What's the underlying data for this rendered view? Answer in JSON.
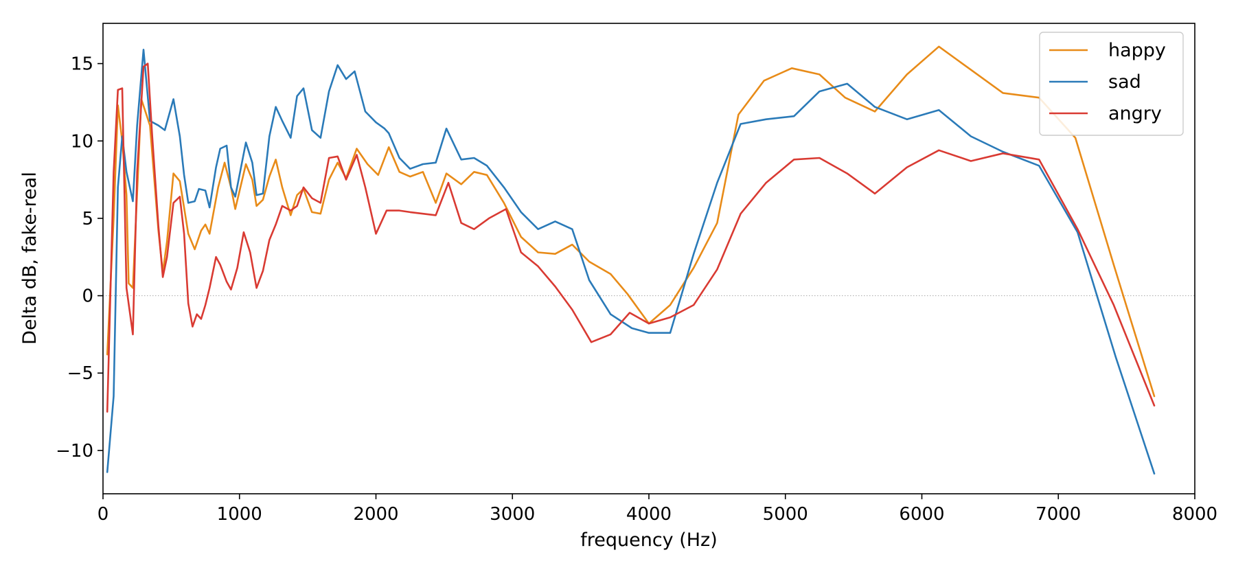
{
  "chart_data": {
    "type": "line",
    "title": "",
    "xlabel": "frequency (Hz)",
    "ylabel": "Delta dB, fake-real",
    "xlim": [
      0,
      8000
    ],
    "ylim": [
      -12.8,
      17.6
    ],
    "xticks": [
      0,
      1000,
      2000,
      3000,
      4000,
      5000,
      6000,
      7000,
      8000
    ],
    "yticks": [
      -10,
      -5,
      0,
      5,
      10,
      15
    ],
    "xtick_labels": [
      "0",
      "1000",
      "2000",
      "3000",
      "4000",
      "5000",
      "6000",
      "7000",
      "8000"
    ],
    "ytick_labels": [
      "−10",
      "−5",
      "0",
      "5",
      "10",
      "15"
    ],
    "zero_line": {
      "y": 0,
      "color": "#b0b0b0",
      "style": "dotted"
    },
    "grid": false,
    "legend_position": "top-right",
    "series": [
      {
        "name": "happy",
        "color": "#e88b18",
        "points": [
          [
            31,
            -3.8
          ],
          [
            78,
            5.0
          ],
          [
            109,
            12.3
          ],
          [
            141,
            10.0
          ],
          [
            172,
            6.5
          ],
          [
            188,
            0.8
          ],
          [
            219,
            0.5
          ],
          [
            281,
            12.7
          ],
          [
            344,
            11.0
          ],
          [
            406,
            4.2
          ],
          [
            438,
            1.5
          ],
          [
            469,
            3.5
          ],
          [
            516,
            7.9
          ],
          [
            563,
            7.4
          ],
          [
            625,
            4.0
          ],
          [
            672,
            3.0
          ],
          [
            719,
            4.2
          ],
          [
            750,
            4.6
          ],
          [
            781,
            4.0
          ],
          [
            844,
            7.0
          ],
          [
            891,
            8.6
          ],
          [
            938,
            7.0
          ],
          [
            969,
            5.6
          ],
          [
            1047,
            8.5
          ],
          [
            1094,
            7.5
          ],
          [
            1125,
            5.8
          ],
          [
            1172,
            6.2
          ],
          [
            1219,
            7.7
          ],
          [
            1266,
            8.8
          ],
          [
            1313,
            7.0
          ],
          [
            1375,
            5.2
          ],
          [
            1422,
            6.5
          ],
          [
            1469,
            6.9
          ],
          [
            1531,
            5.4
          ],
          [
            1594,
            5.3
          ],
          [
            1656,
            7.5
          ],
          [
            1719,
            8.6
          ],
          [
            1781,
            7.6
          ],
          [
            1859,
            9.5
          ],
          [
            1938,
            8.5
          ],
          [
            2016,
            7.8
          ],
          [
            2094,
            9.6
          ],
          [
            2172,
            8.0
          ],
          [
            2250,
            7.7
          ],
          [
            2344,
            8.0
          ],
          [
            2438,
            6.0
          ],
          [
            2516,
            7.9
          ],
          [
            2625,
            7.2
          ],
          [
            2719,
            8.0
          ],
          [
            2813,
            7.8
          ],
          [
            2938,
            6.0
          ],
          [
            3063,
            3.8
          ],
          [
            3188,
            2.8
          ],
          [
            3313,
            2.7
          ],
          [
            3438,
            3.3
          ],
          [
            3563,
            2.2
          ],
          [
            3719,
            1.4
          ],
          [
            3844,
            0.1
          ],
          [
            4000,
            -1.8
          ],
          [
            4156,
            -0.6
          ],
          [
            4328,
            1.8
          ],
          [
            4500,
            4.7
          ],
          [
            4656,
            11.7
          ],
          [
            4844,
            13.9
          ],
          [
            5047,
            14.7
          ],
          [
            5250,
            14.3
          ],
          [
            5438,
            12.8
          ],
          [
            5656,
            11.9
          ],
          [
            5891,
            14.3
          ],
          [
            6125,
            16.1
          ],
          [
            6359,
            14.6
          ],
          [
            6594,
            13.1
          ],
          [
            6859,
            12.8
          ],
          [
            7125,
            10.2
          ],
          [
            7406,
            2.0
          ],
          [
            7703,
            -6.5
          ]
        ]
      },
      {
        "name": "sad",
        "color": "#2a7ab8",
        "points": [
          [
            31,
            -11.4
          ],
          [
            78,
            -6.5
          ],
          [
            109,
            7.0
          ],
          [
            141,
            10.3
          ],
          [
            172,
            8.0
          ],
          [
            219,
            6.1
          ],
          [
            250,
            11.0
          ],
          [
            297,
            15.9
          ],
          [
            344,
            11.3
          ],
          [
            406,
            11.0
          ],
          [
            453,
            10.7
          ],
          [
            516,
            12.7
          ],
          [
            563,
            10.3
          ],
          [
            594,
            7.8
          ],
          [
            625,
            6.0
          ],
          [
            672,
            6.1
          ],
          [
            703,
            6.9
          ],
          [
            750,
            6.8
          ],
          [
            781,
            5.7
          ],
          [
            828,
            8.3
          ],
          [
            859,
            9.5
          ],
          [
            906,
            9.7
          ],
          [
            938,
            7.0
          ],
          [
            969,
            6.4
          ],
          [
            1047,
            9.9
          ],
          [
            1094,
            8.6
          ],
          [
            1125,
            6.5
          ],
          [
            1172,
            6.6
          ],
          [
            1219,
            10.3
          ],
          [
            1266,
            12.2
          ],
          [
            1313,
            11.3
          ],
          [
            1375,
            10.2
          ],
          [
            1422,
            12.9
          ],
          [
            1469,
            13.4
          ],
          [
            1531,
            10.7
          ],
          [
            1594,
            10.2
          ],
          [
            1656,
            13.2
          ],
          [
            1719,
            14.9
          ],
          [
            1781,
            14.0
          ],
          [
            1844,
            14.5
          ],
          [
            1922,
            11.9
          ],
          [
            2000,
            11.2
          ],
          [
            2063,
            10.8
          ],
          [
            2094,
            10.5
          ],
          [
            2172,
            8.9
          ],
          [
            2250,
            8.2
          ],
          [
            2344,
            8.5
          ],
          [
            2438,
            8.6
          ],
          [
            2516,
            10.8
          ],
          [
            2625,
            8.8
          ],
          [
            2719,
            8.9
          ],
          [
            2813,
            8.4
          ],
          [
            2938,
            7.0
          ],
          [
            3063,
            5.4
          ],
          [
            3188,
            4.3
          ],
          [
            3313,
            4.8
          ],
          [
            3438,
            4.3
          ],
          [
            3563,
            1.0
          ],
          [
            3719,
            -1.2
          ],
          [
            3875,
            -2.1
          ],
          [
            4000,
            -2.4
          ],
          [
            4156,
            -2.4
          ],
          [
            4328,
            2.7
          ],
          [
            4500,
            7.3
          ],
          [
            4672,
            11.1
          ],
          [
            4859,
            11.4
          ],
          [
            5063,
            11.6
          ],
          [
            5250,
            13.2
          ],
          [
            5453,
            13.7
          ],
          [
            5656,
            12.2
          ],
          [
            5891,
            11.4
          ],
          [
            6125,
            12.0
          ],
          [
            6359,
            10.3
          ],
          [
            6594,
            9.3
          ],
          [
            6859,
            8.4
          ],
          [
            7141,
            4.1
          ],
          [
            7422,
            -4.0
          ],
          [
            7703,
            -11.5
          ]
        ]
      },
      {
        "name": "angry",
        "color": "#d93a32",
        "points": [
          [
            31,
            -7.5
          ],
          [
            78,
            8.0
          ],
          [
            109,
            13.3
          ],
          [
            141,
            13.4
          ],
          [
            172,
            0.5
          ],
          [
            219,
            -2.5
          ],
          [
            250,
            8.0
          ],
          [
            297,
            14.8
          ],
          [
            328,
            15.0
          ],
          [
            359,
            10.5
          ],
          [
            406,
            4.5
          ],
          [
            438,
            1.2
          ],
          [
            469,
            2.5
          ],
          [
            516,
            6.0
          ],
          [
            563,
            6.4
          ],
          [
            594,
            4.0
          ],
          [
            625,
            -0.5
          ],
          [
            656,
            -2.0
          ],
          [
            688,
            -1.2
          ],
          [
            719,
            -1.5
          ],
          [
            750,
            -0.6
          ],
          [
            781,
            0.5
          ],
          [
            828,
            2.5
          ],
          [
            859,
            2.0
          ],
          [
            906,
            0.9
          ],
          [
            938,
            0.4
          ],
          [
            984,
            1.8
          ],
          [
            1031,
            4.1
          ],
          [
            1078,
            2.8
          ],
          [
            1125,
            0.5
          ],
          [
            1172,
            1.6
          ],
          [
            1219,
            3.6
          ],
          [
            1266,
            4.6
          ],
          [
            1313,
            5.8
          ],
          [
            1375,
            5.5
          ],
          [
            1422,
            5.8
          ],
          [
            1469,
            7.0
          ],
          [
            1531,
            6.3
          ],
          [
            1594,
            6.0
          ],
          [
            1656,
            8.9
          ],
          [
            1719,
            9.0
          ],
          [
            1781,
            7.5
          ],
          [
            1859,
            9.1
          ],
          [
            1922,
            7.0
          ],
          [
            2000,
            4.0
          ],
          [
            2078,
            5.5
          ],
          [
            2172,
            5.5
          ],
          [
            2250,
            5.4
          ],
          [
            2344,
            5.3
          ],
          [
            2438,
            5.2
          ],
          [
            2531,
            7.3
          ],
          [
            2625,
            4.7
          ],
          [
            2719,
            4.3
          ],
          [
            2828,
            5.0
          ],
          [
            2953,
            5.6
          ],
          [
            3063,
            2.8
          ],
          [
            3188,
            1.9
          ],
          [
            3313,
            0.6
          ],
          [
            3438,
            -0.9
          ],
          [
            3578,
            -3.0
          ],
          [
            3719,
            -2.5
          ],
          [
            3859,
            -1.1
          ],
          [
            4000,
            -1.8
          ],
          [
            4156,
            -1.4
          ],
          [
            4328,
            -0.6
          ],
          [
            4500,
            1.7
          ],
          [
            4672,
            5.3
          ],
          [
            4859,
            7.3
          ],
          [
            5063,
            8.8
          ],
          [
            5250,
            8.9
          ],
          [
            5453,
            7.9
          ],
          [
            5656,
            6.6
          ],
          [
            5891,
            8.3
          ],
          [
            6125,
            9.4
          ],
          [
            6359,
            8.7
          ],
          [
            6594,
            9.2
          ],
          [
            6859,
            8.8
          ],
          [
            7141,
            4.3
          ],
          [
            7406,
            -0.6
          ],
          [
            7703,
            -7.1
          ]
        ]
      }
    ]
  }
}
